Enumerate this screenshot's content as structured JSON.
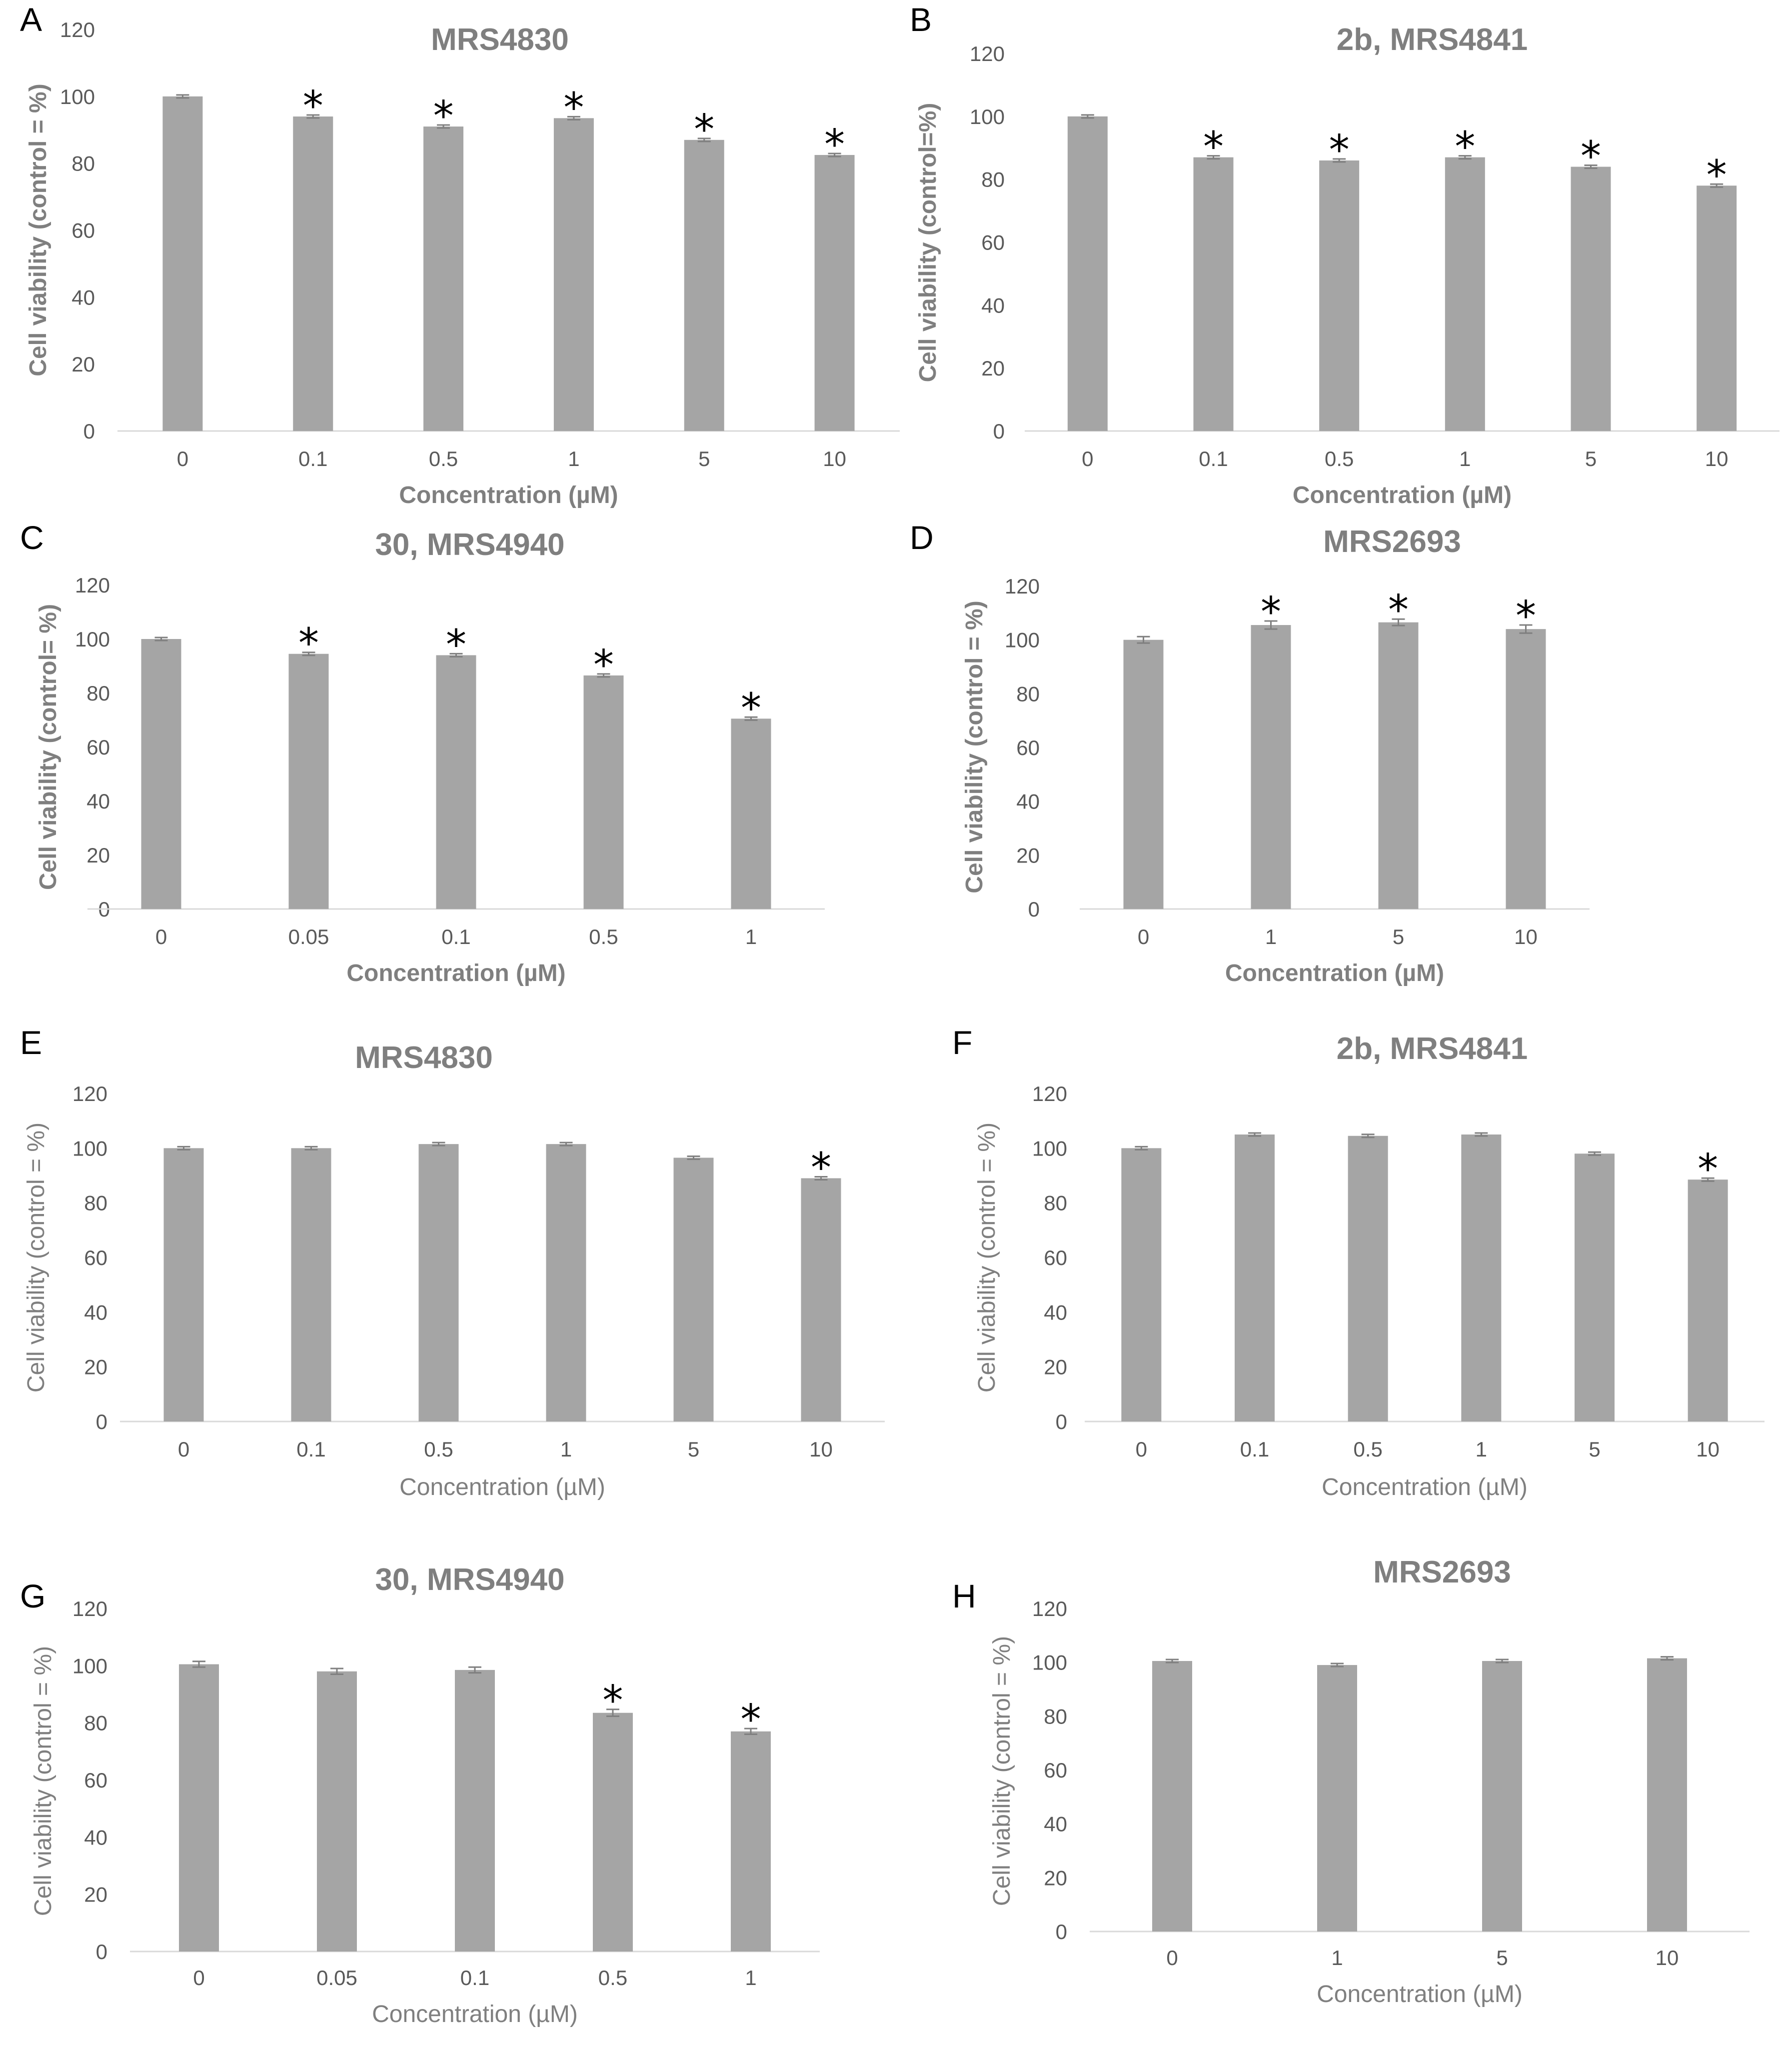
{
  "colors": {
    "bar": "#a5a5a5",
    "title": "#7f7f7f",
    "axis": "#d9d9d9",
    "tick": "#595959",
    "star": "#000000"
  },
  "chart_data": [
    {
      "panel": "A",
      "type": "bar",
      "title": "MRS4830",
      "xlabel": "Concentration (µM)",
      "ylabel": "Cell viability (control = %)",
      "bold_axis_titles": true,
      "ylim": [
        0,
        120
      ],
      "yticks": [
        0,
        20,
        40,
        60,
        80,
        100,
        120
      ],
      "categories": [
        "0",
        "0.1",
        "0.5",
        "1",
        "5",
        "10"
      ],
      "values": [
        100,
        94,
        91,
        93.5,
        87,
        82.5
      ],
      "errors": [
        0.3,
        0.3,
        0.3,
        0.3,
        0.4,
        0.3
      ],
      "significant": [
        false,
        true,
        true,
        true,
        true,
        true
      ],
      "star_label": "*"
    },
    {
      "panel": "B",
      "type": "bar",
      "title": "2b, MRS4841",
      "xlabel": "Concentration (µM)",
      "ylabel": "Cell viability (control=%)",
      "bold_axis_titles": true,
      "ylim": [
        0,
        120
      ],
      "yticks": [
        0,
        20,
        40,
        60,
        80,
        100,
        120
      ],
      "categories": [
        "0",
        "0.1",
        "0.5",
        "1",
        "5",
        "10"
      ],
      "values": [
        100,
        87,
        86,
        87,
        84,
        78
      ],
      "errors": [
        0.3,
        0.4,
        0.3,
        0.3,
        0.3,
        0.3
      ],
      "significant": [
        false,
        true,
        true,
        true,
        true,
        true
      ],
      "star_label": "*"
    },
    {
      "panel": "C",
      "type": "bar",
      "title": "30, MRS4940",
      "xlabel": "Concentration (µM)",
      "ylabel": "Cell viability (control= %)",
      "bold_axis_titles": true,
      "ylim": [
        0,
        120
      ],
      "yticks": [
        0,
        20,
        40,
        60,
        80,
        100,
        120
      ],
      "categories": [
        "0",
        "0.05",
        "0.1",
        "0.5",
        "1"
      ],
      "values": [
        100,
        94.5,
        94,
        86.5,
        70.5
      ],
      "errors": [
        0.3,
        0.3,
        0.3,
        0.3,
        0.3
      ],
      "significant": [
        false,
        true,
        true,
        true,
        true
      ],
      "star_label": "*"
    },
    {
      "panel": "D",
      "type": "bar",
      "title": "MRS2693",
      "xlabel": "Concentration (µM)",
      "ylabel": "Cell viability (control = %)",
      "bold_axis_titles": true,
      "ylim": [
        0,
        120
      ],
      "yticks": [
        0,
        20,
        40,
        60,
        80,
        100,
        120
      ],
      "categories": [
        "0",
        "1",
        "5",
        "10"
      ],
      "values": [
        100,
        105.5,
        106.5,
        104
      ],
      "errors": [
        1.2,
        1.5,
        1.2,
        1.5
      ],
      "significant": [
        false,
        true,
        true,
        true
      ],
      "star_label": "*"
    },
    {
      "panel": "E",
      "type": "bar",
      "title": "MRS4830",
      "xlabel": "Concentration (µM)",
      "ylabel": "Cell viability (control = %)",
      "bold_axis_titles": false,
      "ylim": [
        0,
        120
      ],
      "yticks": [
        0,
        20,
        40,
        60,
        80,
        100,
        120
      ],
      "categories": [
        "0",
        "0.1",
        "0.5",
        "1",
        "5",
        "10"
      ],
      "values": [
        100,
        100,
        101.5,
        101.5,
        96.5,
        89
      ],
      "errors": [
        0.3,
        0.3,
        0.3,
        0.3,
        0.3,
        0.3
      ],
      "significant": [
        false,
        false,
        false,
        false,
        false,
        true
      ],
      "star_label": "*"
    },
    {
      "panel": "F",
      "type": "bar",
      "title": "2b, MRS4841",
      "xlabel": "Concentration (µM)",
      "ylabel": "Cell viability (control = %)",
      "bold_axis_titles": false,
      "ylim": [
        0,
        120
      ],
      "yticks": [
        0,
        20,
        40,
        60,
        80,
        100,
        120
      ],
      "categories": [
        "0",
        "0.1",
        "0.5",
        "1",
        "5",
        "10"
      ],
      "values": [
        100,
        105,
        104.5,
        105,
        98,
        88.5
      ],
      "errors": [
        0.3,
        0.3,
        0.3,
        0.3,
        0.3,
        0.3
      ],
      "significant": [
        false,
        false,
        false,
        false,
        false,
        true
      ],
      "star_label": "*"
    },
    {
      "panel": "G",
      "type": "bar",
      "title": "30, MRS4940",
      "xlabel": "Concentration (µM)",
      "ylabel": "Cell viability (control = %)",
      "bold_axis_titles": false,
      "ylim": [
        0,
        120
      ],
      "yticks": [
        0,
        20,
        40,
        60,
        80,
        100,
        120
      ],
      "categories": [
        "0",
        "0.05",
        "0.1",
        "0.5",
        "1"
      ],
      "values": [
        100.5,
        98,
        98.5,
        83.5,
        77
      ],
      "errors": [
        1.0,
        1.0,
        1.0,
        1.2,
        1.0
      ],
      "significant": [
        false,
        false,
        false,
        true,
        true
      ],
      "star_label": "*"
    },
    {
      "panel": "H",
      "type": "bar",
      "title": "MRS2693",
      "xlabel": "Concentration (µM)",
      "ylabel": "Cell viability (control = %)",
      "bold_axis_titles": false,
      "ylim": [
        0,
        120
      ],
      "yticks": [
        0,
        20,
        40,
        60,
        80,
        100,
        120
      ],
      "categories": [
        "0",
        "1",
        "5",
        "10"
      ],
      "values": [
        100.5,
        99,
        100.5,
        101.5
      ],
      "errors": [
        0.3,
        0.3,
        0.3,
        0.3
      ],
      "significant": [
        false,
        false,
        false,
        false
      ],
      "star_label": "*"
    }
  ]
}
